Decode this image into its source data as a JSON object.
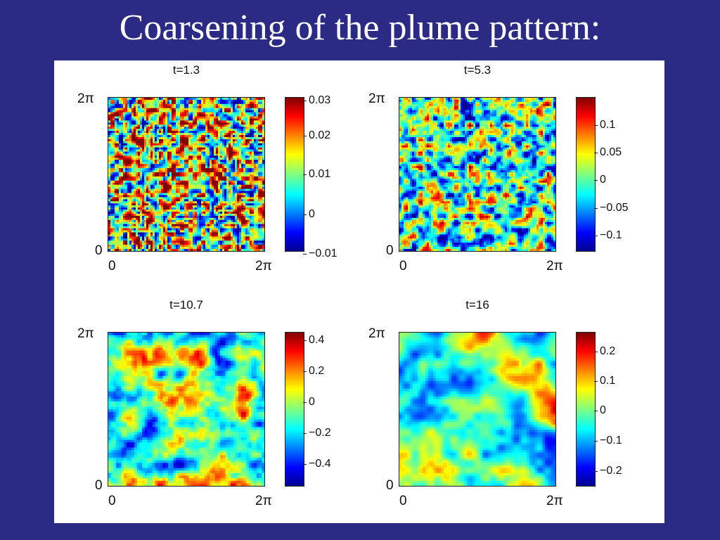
{
  "slide": {
    "title": "Coarsening of the plume pattern:"
  },
  "colormap": [
    "#00008f",
    "#0000ff",
    "#00ffff",
    "#ffff00",
    "#ff0000",
    "#800000"
  ],
  "chart_data": [
    {
      "type": "heatmap",
      "title": "t=1.3",
      "x_ticks": [
        "0",
        "2π"
      ],
      "y_ticks": [
        "0",
        "2π"
      ],
      "xlim": [
        "0",
        "2π"
      ],
      "ylim": [
        "0",
        "2π"
      ],
      "colorbar": {
        "range": [
          -0.012,
          0.032
        ],
        "ticks": [
          -0.01,
          0,
          0.01,
          0.02,
          0.03
        ],
        "tick_labels": [
          "−0.01",
          "0",
          "0.01",
          "0.02",
          "0.03"
        ]
      }
    },
    {
      "type": "heatmap",
      "title": "t=5.3",
      "x_ticks": [
        "0",
        "2π"
      ],
      "y_ticks": [
        "0",
        "2π"
      ],
      "xlim": [
        "0",
        "2π"
      ],
      "ylim": [
        "0",
        "2π"
      ],
      "colorbar": {
        "range": [
          -0.13,
          0.15
        ],
        "ticks": [
          -0.1,
          -0.05,
          0,
          0.05,
          0.1
        ],
        "tick_labels": [
          "−0.1",
          "−0.05",
          "0",
          "0.05",
          "0.1"
        ]
      }
    },
    {
      "type": "heatmap",
      "title": "t=10.7",
      "x_ticks": [
        "0",
        "2π"
      ],
      "y_ticks": [
        "0",
        "2π"
      ],
      "xlim": [
        "0",
        "2π"
      ],
      "ylim": [
        "0",
        "2π"
      ],
      "colorbar": {
        "range": [
          -0.5,
          0.5
        ],
        "ticks": [
          -0.4,
          -0.2,
          0,
          0.2,
          0.4
        ],
        "tick_labels": [
          "−0.4",
          "−0.2",
          "0",
          "0.2",
          "0.4"
        ]
      }
    },
    {
      "type": "heatmap",
      "title": "t=16",
      "x_ticks": [
        "0",
        "2π"
      ],
      "y_ticks": [
        "0",
        "2π"
      ],
      "xlim": [
        "0",
        "2π"
      ],
      "ylim": [
        "0",
        "2π"
      ],
      "colorbar": {
        "range": [
          -0.27,
          0.27
        ],
        "ticks": [
          -0.2,
          -0.1,
          0,
          0.1,
          0.2
        ],
        "tick_labels": [
          "−0.2",
          "−0.1",
          "0",
          "0.1",
          "0.2"
        ]
      }
    }
  ]
}
